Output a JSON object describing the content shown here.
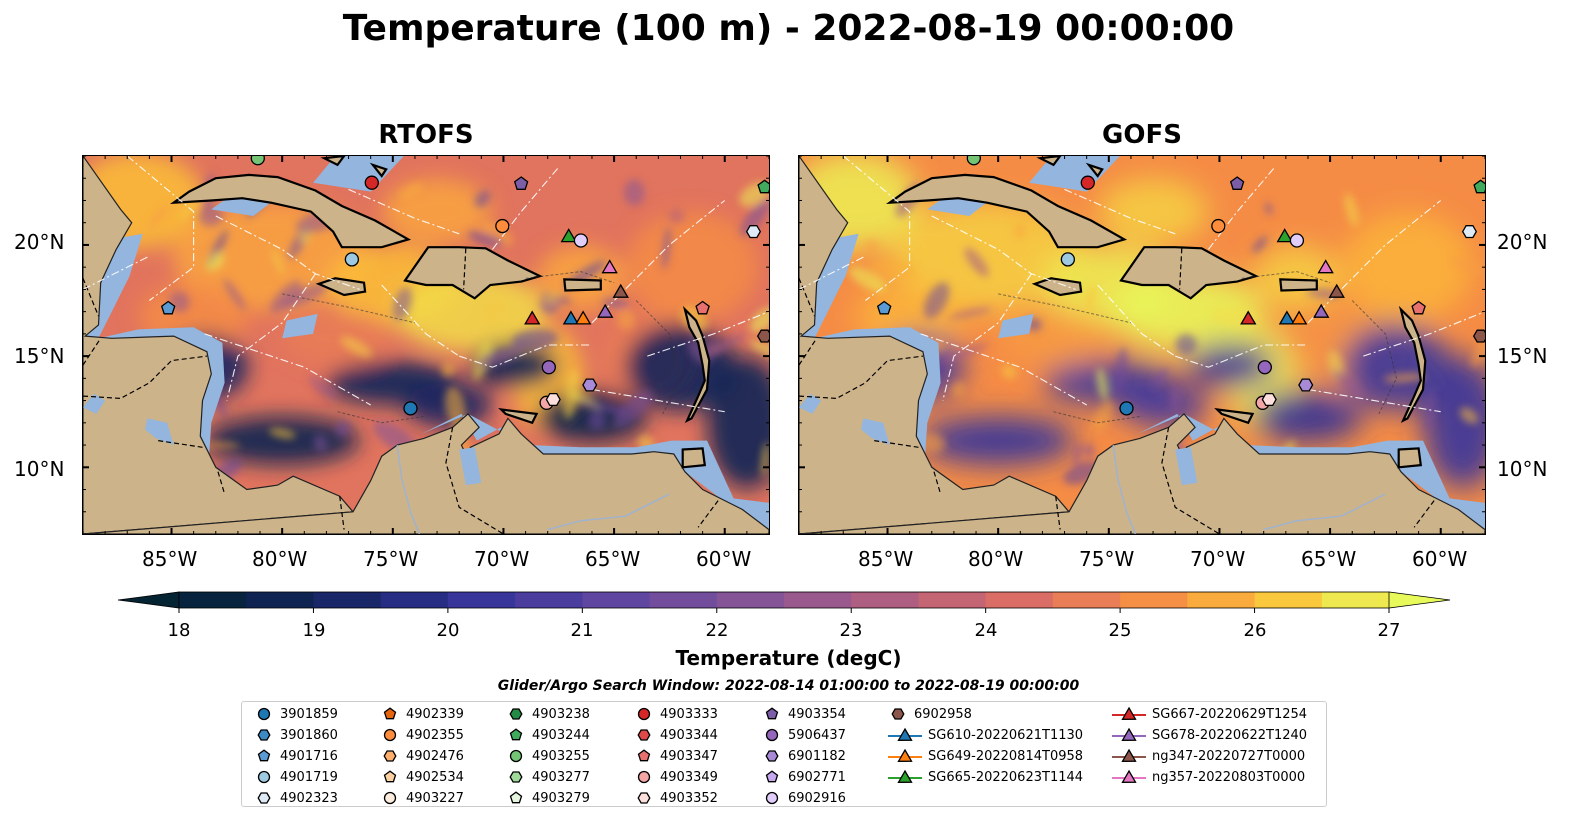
{
  "title": "Temperature (100 m) - 2022-08-19 00:00:00",
  "panels": [
    {
      "title": "RTOFS"
    },
    {
      "title": "GOFS"
    }
  ],
  "axes": {
    "lon_ticks": [
      "85°W",
      "80°W",
      "75°W",
      "70°W",
      "65°W",
      "60°W"
    ],
    "lat_ticks": [
      "20°N",
      "15°N",
      "10°N"
    ]
  },
  "colorbar": {
    "label": "Temperature (degC)",
    "min": 18,
    "max": 27,
    "step": 0.5,
    "ticks": [
      "18",
      "19",
      "20",
      "21",
      "22",
      "23",
      "24",
      "25",
      "26",
      "27"
    ],
    "colormap": "thermal",
    "extend": "both"
  },
  "legend": {
    "title": "Glider/Argo Search Window: 2022-08-14 01:00:00 to 2022-08-19 00:00:00",
    "columns": [
      [
        {
          "label": "3901859",
          "marker": "circle",
          "color": "#1f77b4"
        },
        {
          "label": "3901860",
          "marker": "hexagon",
          "color": "#3b8ac4"
        },
        {
          "label": "4901716",
          "marker": "pentagon",
          "color": "#5a9bd4"
        },
        {
          "label": "4901719",
          "marker": "circle",
          "color": "#9ecae1"
        },
        {
          "label": "4902323",
          "marker": "hexagon",
          "color": "#deebf7"
        }
      ],
      [
        {
          "label": "4902339",
          "marker": "pentagon",
          "color": "#e6650d"
        },
        {
          "label": "4902355",
          "marker": "circle",
          "color": "#fd8d3c"
        },
        {
          "label": "4902476",
          "marker": "hexagon",
          "color": "#fdae6b"
        },
        {
          "label": "4902534",
          "marker": "pentagon",
          "color": "#fdd0a2"
        },
        {
          "label": "4903227",
          "marker": "circle",
          "color": "#feedde"
        }
      ],
      [
        {
          "label": "4903238",
          "marker": "hexagon",
          "color": "#238b45"
        },
        {
          "label": "4903244",
          "marker": "pentagon",
          "color": "#41ab5d"
        },
        {
          "label": "4903255",
          "marker": "circle",
          "color": "#74c476"
        },
        {
          "label": "4903277",
          "marker": "hexagon",
          "color": "#a1d99b"
        },
        {
          "label": "4903279",
          "marker": "pentagon",
          "color": "#e5f5e0"
        }
      ],
      [
        {
          "label": "4903333",
          "marker": "circle",
          "color": "#d62728"
        },
        {
          "label": "4903344",
          "marker": "hexagon",
          "color": "#de4a4a"
        },
        {
          "label": "4903347",
          "marker": "pentagon",
          "color": "#e8706f"
        },
        {
          "label": "4903349",
          "marker": "circle",
          "color": "#f4a6a6"
        },
        {
          "label": "4903352",
          "marker": "hexagon",
          "color": "#fde0dd"
        }
      ],
      [
        {
          "label": "4903354",
          "marker": "pentagon",
          "color": "#7b5ea7"
        },
        {
          "label": "5906437",
          "marker": "circle",
          "color": "#9467bd"
        },
        {
          "label": "6901182",
          "marker": "hexagon",
          "color": "#a98ad6"
        },
        {
          "label": "6902771",
          "marker": "pentagon",
          "color": "#c6a9ef"
        },
        {
          "label": "6902916",
          "marker": "circle",
          "color": "#e1cdfa"
        }
      ],
      [
        {
          "label": "6902958",
          "marker": "hexagon",
          "color": "#8c564b"
        },
        {
          "label": "SG610-20220621T1130",
          "marker": "triangle",
          "color": "#1f77b4"
        },
        {
          "label": "SG649-20220814T0958",
          "marker": "triangle",
          "color": "#ff7f0e"
        },
        {
          "label": "SG665-20220623T1144",
          "marker": "triangle",
          "color": "#2ca02c"
        }
      ],
      [
        {
          "label": "SG667-20220629T1254",
          "marker": "triangle",
          "color": "#d62728"
        },
        {
          "label": "SG678-20220622T1240",
          "marker": "triangle",
          "color": "#9467bd"
        },
        {
          "label": "ng347-20220727T0000",
          "marker": "triangle",
          "color": "#8c564b"
        },
        {
          "label": "ng357-20220803T0000",
          "marker": "triangle",
          "color": "#e377c2"
        }
      ]
    ]
  },
  "map_extent": {
    "lon": [
      -89,
      -58
    ],
    "lat": [
      7,
      24
    ]
  },
  "platforms": [
    {
      "id": "4903333",
      "marker": "circle",
      "color": "#d62728",
      "lon": -75.95,
      "lat": 22.8
    },
    {
      "id": "4903255",
      "marker": "circle",
      "color": "#74c476",
      "lon": -81.1,
      "lat": 23.9
    },
    {
      "id": "4903244",
      "marker": "pentagon",
      "color": "#41ab5d",
      "lon": -58.2,
      "lat": 22.6
    },
    {
      "id": "4903354",
      "marker": "pentagon",
      "color": "#7b5ea7",
      "lon": -69.2,
      "lat": 22.75
    },
    {
      "id": "4902323",
      "marker": "hexagon",
      "color": "#deebf7",
      "lon": -58.7,
      "lat": 20.6
    },
    {
      "id": "4902355",
      "marker": "circle",
      "color": "#fd8d3c",
      "lon": -70.05,
      "lat": 20.85
    },
    {
      "id": "SG665-20220623T1144",
      "marker": "triangle",
      "color": "#2ca02c",
      "lon": -67.05,
      "lat": 20.4
    },
    {
      "id": "6902916",
      "marker": "circle",
      "color": "#e1cdfa",
      "lon": -66.5,
      "lat": 20.2
    },
    {
      "id": "4901719",
      "marker": "circle",
      "color": "#9ecae1",
      "lon": -76.85,
      "lat": 19.35
    },
    {
      "id": "ng357-20220803T0000",
      "marker": "triangle",
      "color": "#e377c2",
      "lon": -65.2,
      "lat": 19.0
    },
    {
      "id": "ng347-20220727T0000",
      "marker": "triangle",
      "color": "#8c564b",
      "lon": -64.7,
      "lat": 17.9
    },
    {
      "id": "4901716",
      "marker": "pentagon",
      "color": "#5a9bd4",
      "lon": -85.15,
      "lat": 17.15
    },
    {
      "id": "4903347",
      "marker": "pentagon",
      "color": "#e8706f",
      "lon": -61.0,
      "lat": 17.15
    },
    {
      "id": "SG678-20220622T1240",
      "marker": "triangle",
      "color": "#9467bd",
      "lon": -65.4,
      "lat": 17.0
    },
    {
      "id": "SG667-20220629T1254",
      "marker": "triangle",
      "color": "#d62728",
      "lon": -68.7,
      "lat": 16.7
    },
    {
      "id": "SG610-20220621T1130",
      "marker": "triangle",
      "color": "#1f77b4",
      "lon": -66.95,
      "lat": 16.7
    },
    {
      "id": "SG649-20220814T0958",
      "marker": "triangle",
      "color": "#ff7f0e",
      "lon": -66.4,
      "lat": 16.7
    },
    {
      "id": "6902958",
      "marker": "hexagon",
      "color": "#8c564b",
      "lon": -58.2,
      "lat": 15.9
    },
    {
      "id": "5906437",
      "marker": "circle",
      "color": "#9467bd",
      "lon": -67.95,
      "lat": 14.5
    },
    {
      "id": "6901182",
      "marker": "hexagon",
      "color": "#a98ad6",
      "lon": -66.1,
      "lat": 13.7
    },
    {
      "id": "3901859",
      "marker": "circle",
      "color": "#1f77b4",
      "lon": -74.2,
      "lat": 12.65
    },
    {
      "id": "4903349",
      "marker": "circle",
      "color": "#f4a6a6",
      "lon": -68.05,
      "lat": 12.9
    },
    {
      "id": "4903352",
      "marker": "hexagon",
      "color": "#fde0dd",
      "lon": -67.75,
      "lat": 13.05
    }
  ]
}
